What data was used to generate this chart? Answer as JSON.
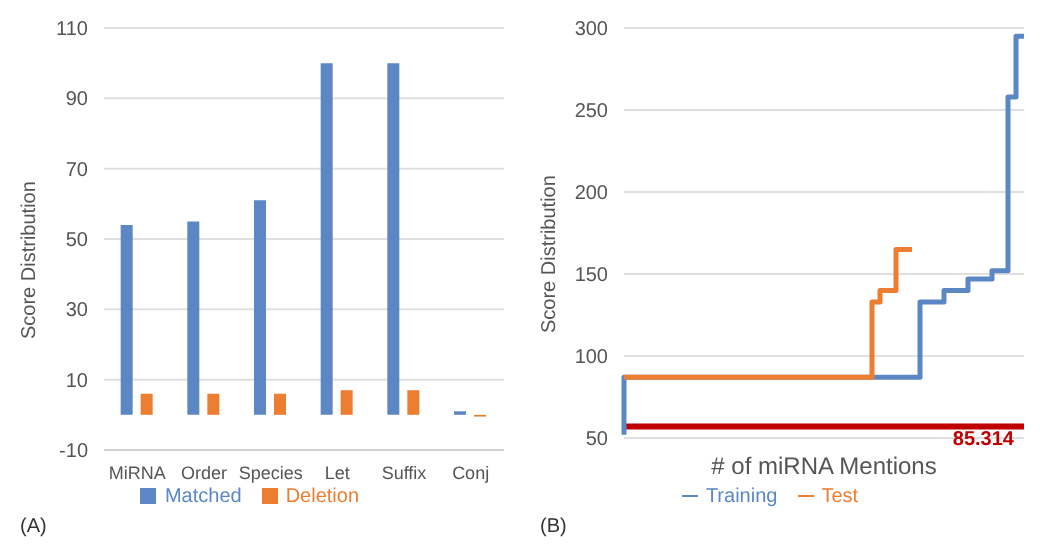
{
  "chart_data": [
    {
      "type": "bar",
      "ylabel": "Score Distribution",
      "categories": [
        "MiRNA",
        "Order",
        "Species",
        "Let",
        "Suffix",
        "Conj"
      ],
      "series": [
        {
          "name": "Matched",
          "color": "#5b87c5",
          "values": [
            54,
            55,
            61,
            100,
            100,
            1
          ]
        },
        {
          "name": "Deletion",
          "color": "#ed7d31",
          "values": [
            6,
            6,
            6,
            7,
            7,
            -0.5
          ]
        }
      ],
      "ylim": [
        -10,
        110
      ],
      "yticks": [
        -10,
        10,
        30,
        50,
        70,
        90,
        110
      ],
      "grid": "y",
      "legend": "bottom",
      "annotations": [
        "(A)"
      ]
    },
    {
      "type": "step",
      "ylabel": "Score Distribution",
      "xlabel": "# of miRNA Mentions",
      "categories": [
        null,
        null,
        null,
        null,
        null,
        null,
        null,
        null,
        null,
        null,
        null,
        null,
        null,
        null,
        null,
        null,
        null,
        null,
        null,
        null,
        null,
        null,
        null,
        null,
        null,
        null,
        null,
        null,
        null,
        null,
        null,
        null,
        null,
        null,
        null,
        null,
        null,
        null,
        null,
        null,
        null,
        null,
        null,
        null,
        null,
        null,
        null,
        null,
        null,
        null,
        null
      ],
      "series": [
        {
          "name": "Training",
          "color": "#5b87c5",
          "values": [
            52,
            null,
            null,
            null,
            null,
            null,
            null,
            null,
            null,
            null,
            null,
            null,
            null,
            null,
            null,
            null,
            null,
            null,
            null,
            null,
            null,
            null,
            null,
            null,
            null,
            null,
            null,
            null,
            null,
            null,
            null,
            87,
            87,
            87,
            87,
            87,
            87,
            87,
            133,
            133,
            133,
            140,
            140,
            140,
            147,
            147,
            147,
            152,
            152,
            258,
            295
          ]
        },
        {
          "name": "Test",
          "color": "#ed7d31",
          "values": [
            87,
            87,
            87,
            87,
            87,
            87,
            87,
            87,
            87,
            87,
            87,
            87,
            87,
            87,
            87,
            87,
            87,
            87,
            87,
            87,
            87,
            87,
            87,
            87,
            87,
            87,
            87,
            87,
            87,
            87,
            87,
            87,
            133,
            140,
            140,
            165,
            165,
            null,
            null,
            null,
            null,
            null,
            null,
            null,
            null,
            null,
            null,
            null,
            null,
            null,
            null
          ]
        }
      ],
      "ylim": [
        50,
        300
      ],
      "yticks": [
        50,
        100,
        150,
        200,
        250,
        300
      ],
      "grid": "y",
      "legend": "bottom",
      "tick_labels": "y",
      "ref_lines": [
        {
          "axis": "y",
          "value": 57,
          "color": "#c00000"
        }
      ],
      "annotations": [
        "(B)",
        {
          "text": "85.314",
          "y": 57
        }
      ]
    }
  ]
}
